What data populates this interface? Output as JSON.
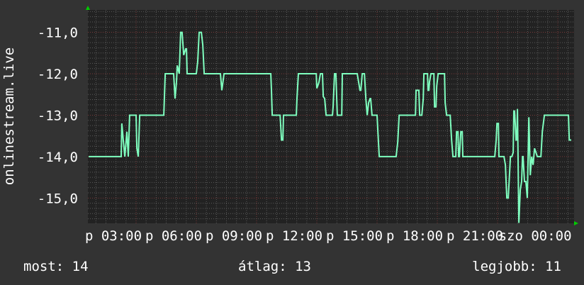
{
  "chart_data": {
    "type": "line",
    "ylabel": "onlinestream.live",
    "ylim": [
      -15.61,
      -10.46
    ],
    "xlim": [
      0.6,
      24.81
    ],
    "x_unit": "hours",
    "grid": true,
    "y_ticks": [
      {
        "value": -11,
        "label": "-11,0"
      },
      {
        "value": -12,
        "label": "-12,0"
      },
      {
        "value": -13,
        "label": "-13,0"
      },
      {
        "value": -14,
        "label": "-14,0"
      },
      {
        "value": -15,
        "label": "-15,0"
      }
    ],
    "x_ticks": [
      {
        "value": 3,
        "label": "p 03:00"
      },
      {
        "value": 6,
        "label": "p 06:00"
      },
      {
        "value": 9,
        "label": "p 09:00"
      },
      {
        "value": 12,
        "label": "p 12:00"
      },
      {
        "value": 15,
        "label": "p 15:00"
      },
      {
        "value": 18,
        "label": "p 18:00"
      },
      {
        "value": 21,
        "label": "p 21:00"
      },
      {
        "value": 24,
        "label": "szo 00:00"
      }
    ],
    "series": [
      {
        "color": "#7fffbf",
        "points": [
          [
            0.64,
            -14
          ],
          [
            2.26,
            -14
          ],
          [
            2.29,
            -13.2
          ],
          [
            2.36,
            -13.6
          ],
          [
            2.44,
            -14
          ],
          [
            2.54,
            -13.4
          ],
          [
            2.61,
            -14
          ],
          [
            2.68,
            -13
          ],
          [
            3.0,
            -13
          ],
          [
            3.04,
            -13.8
          ],
          [
            3.11,
            -14
          ],
          [
            3.18,
            -13
          ],
          [
            4.38,
            -13
          ],
          [
            4.45,
            -12
          ],
          [
            4.87,
            -12
          ],
          [
            4.94,
            -12.6
          ],
          [
            5.01,
            -12.2
          ],
          [
            5.05,
            -11.8
          ],
          [
            5.15,
            -12
          ],
          [
            5.22,
            -11
          ],
          [
            5.29,
            -11
          ],
          [
            5.37,
            -11.55
          ],
          [
            5.47,
            -11.4
          ],
          [
            5.51,
            -11.4
          ],
          [
            5.54,
            -12
          ],
          [
            6.0,
            -12
          ],
          [
            6.07,
            -11.7
          ],
          [
            6.14,
            -11
          ],
          [
            6.25,
            -11
          ],
          [
            6.32,
            -11.3
          ],
          [
            6.39,
            -12
          ],
          [
            7.2,
            -12
          ],
          [
            7.27,
            -12.4
          ],
          [
            7.38,
            -12
          ],
          [
            9.71,
            -12
          ],
          [
            9.74,
            -12.4
          ],
          [
            9.78,
            -13
          ],
          [
            10.17,
            -13
          ],
          [
            10.24,
            -13.6
          ],
          [
            10.31,
            -13.6
          ],
          [
            10.34,
            -13
          ],
          [
            10.98,
            -13
          ],
          [
            11.01,
            -12.6
          ],
          [
            11.08,
            -12
          ],
          [
            11.97,
            -12
          ],
          [
            12.0,
            -12.35
          ],
          [
            12.04,
            -12.3
          ],
          [
            12.11,
            -12.2
          ],
          [
            12.18,
            -12
          ],
          [
            12.28,
            -12
          ],
          [
            12.32,
            -12.55
          ],
          [
            12.39,
            -12.6
          ],
          [
            12.46,
            -13
          ],
          [
            12.78,
            -13
          ],
          [
            12.81,
            -12.8
          ],
          [
            12.88,
            -12
          ],
          [
            12.95,
            -12
          ],
          [
            13.02,
            -13
          ],
          [
            13.24,
            -13
          ],
          [
            13.27,
            -12
          ],
          [
            14.01,
            -12
          ],
          [
            14.08,
            -12.2
          ],
          [
            14.15,
            -12.4
          ],
          [
            14.19,
            -12.4
          ],
          [
            14.26,
            -12
          ],
          [
            14.37,
            -12
          ],
          [
            14.44,
            -12.6
          ],
          [
            14.51,
            -13
          ],
          [
            14.58,
            -12.7
          ],
          [
            14.65,
            -12.6
          ],
          [
            14.68,
            -12.6
          ],
          [
            14.75,
            -13
          ],
          [
            15.0,
            -13
          ],
          [
            15.04,
            -13.4
          ],
          [
            15.11,
            -14
          ],
          [
            15.95,
            -14
          ],
          [
            16.03,
            -13.65
          ],
          [
            16.1,
            -13
          ],
          [
            16.91,
            -13
          ],
          [
            16.94,
            -12.4
          ],
          [
            17.08,
            -12.4
          ],
          [
            17.12,
            -13
          ],
          [
            17.23,
            -13
          ],
          [
            17.3,
            -12.6
          ],
          [
            17.33,
            -12
          ],
          [
            17.51,
            -12
          ],
          [
            17.54,
            -12.4
          ],
          [
            17.58,
            -12.4
          ],
          [
            17.61,
            -12.2
          ],
          [
            17.68,
            -12
          ],
          [
            17.83,
            -12
          ],
          [
            17.86,
            -12.8
          ],
          [
            17.93,
            -12.8
          ],
          [
            17.97,
            -12.3
          ],
          [
            18.04,
            -12
          ],
          [
            18.36,
            -12
          ],
          [
            18.39,
            -12.7
          ],
          [
            18.46,
            -13
          ],
          [
            18.64,
            -13
          ],
          [
            18.71,
            -13.6
          ],
          [
            18.78,
            -14
          ],
          [
            18.92,
            -14
          ],
          [
            18.96,
            -13.4
          ],
          [
            19.03,
            -13.4
          ],
          [
            19.06,
            -14
          ],
          [
            19.1,
            -14
          ],
          [
            19.17,
            -13.4
          ],
          [
            19.24,
            -13.4
          ],
          [
            19.27,
            -14
          ],
          [
            20.86,
            -14
          ],
          [
            20.93,
            -13.6
          ],
          [
            20.97,
            -13.2
          ],
          [
            21.04,
            -13.2
          ],
          [
            21.07,
            -14
          ],
          [
            21.32,
            -14
          ],
          [
            21.39,
            -14.2
          ],
          [
            21.46,
            -15
          ],
          [
            21.53,
            -15
          ],
          [
            21.6,
            -14.4
          ],
          [
            21.64,
            -14
          ],
          [
            21.71,
            -14
          ],
          [
            21.78,
            -13.9
          ],
          [
            21.81,
            -12.9
          ],
          [
            21.85,
            -12.9
          ],
          [
            21.92,
            -13.6
          ],
          [
            21.96,
            -13.6
          ],
          [
            21.99,
            -12.85
          ],
          [
            22.06,
            -15.6
          ],
          [
            22.13,
            -14.8
          ],
          [
            22.2,
            -14.6
          ],
          [
            22.24,
            -14
          ],
          [
            22.27,
            -14
          ],
          [
            22.34,
            -14.6
          ],
          [
            22.41,
            -14.6
          ],
          [
            22.48,
            -15
          ],
          [
            22.56,
            -13.05
          ],
          [
            22.63,
            -14.45
          ],
          [
            22.7,
            -14
          ],
          [
            22.77,
            -14.2
          ],
          [
            22.84,
            -13.8
          ],
          [
            22.91,
            -13.9
          ],
          [
            22.98,
            -14
          ],
          [
            23.16,
            -14
          ],
          [
            23.23,
            -13.4
          ],
          [
            23.33,
            -13
          ],
          [
            24.53,
            -13
          ],
          [
            24.57,
            -13.6
          ],
          [
            24.67,
            -13.6
          ]
        ]
      }
    ],
    "legend": {
      "current": "most: 14",
      "average": "átlag: 13",
      "best": "legjobb: 11"
    }
  },
  "colors": {
    "background": "#333333",
    "plot_background": "#222222",
    "major_grid": "#7a3a3a",
    "minor_grid": "#5a5a5a",
    "line": "#7fffbf",
    "axis_arrow": "#00cc00"
  }
}
